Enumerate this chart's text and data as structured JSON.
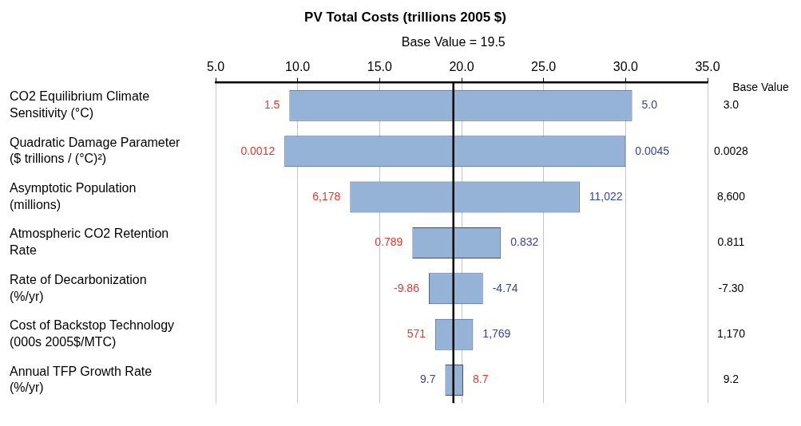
{
  "chart_data": {
    "type": "bar",
    "orientation": "horizontal",
    "title": "PV Total Costs (trillions 2005 $)",
    "categories": [
      "CO2 Equilibrium Climate\nSensitivity (°C)",
      "Quadratic Damage Parameter\n($ trillions / (°C)²)",
      "Asymptotic Population\n(millions)",
      "Atmospheric CO2 Retention\nRate",
      "Rate of Decarbonization\n(%/yr)",
      "Cost of Backstop Technology\n(000s 2005$/MTC)",
      "Annual TFP Growth Rate\n(%/yr)"
    ],
    "y2label": "Base Value",
    "y2_categories": [
      "3.0",
      "0.0028",
      "8,600",
      "0.811",
      "-7.30",
      "1,170",
      "9.2"
    ],
    "base": [
      9.5,
      9.2,
      13.2,
      17.0,
      18.0,
      18.4,
      19.0
    ],
    "values": [
      20.9,
      20.8,
      14.0,
      5.4,
      3.3,
      2.3,
      1.1
    ],
    "color": "#95b3d7",
    "xlim": [
      5,
      35
    ],
    "xticks": [
      {
        "value": 5,
        "label": "5.0"
      },
      {
        "value": 10,
        "label": "10.0"
      },
      {
        "value": 15,
        "label": "15.0"
      },
      {
        "value": 20,
        "label": "20.0"
      },
      {
        "value": 25,
        "label": "25.0"
      },
      {
        "value": 30,
        "label": "30.0"
      },
      {
        "value": 35,
        "label": "35.0"
      }
    ],
    "grid": "x",
    "ref_lines": [
      {
        "axis": "x",
        "value": 19.5,
        "label": "Base Value = 19.5",
        "color": "#000000"
      }
    ],
    "annotations": [
      {
        "text": "1.5",
        "x": 9.5,
        "y": "CO2 Equilibrium Climate\nSensitivity (°C)"
      },
      {
        "text": "5.0",
        "x": 30.4,
        "y": "CO2 Equilibrium Climate\nSensitivity (°C)"
      },
      {
        "text": "0.0012",
        "x": 9.2,
        "y": "Quadratic Damage Parameter\n($ trillions / (°C)²)"
      },
      {
        "text": "0.0045",
        "x": 30.0,
        "y": "Quadratic Damage Parameter\n($ trillions / (°C)²)"
      },
      {
        "text": "6,178",
        "x": 13.2,
        "y": "Asymptotic Population\n(millions)"
      },
      {
        "text": "11,022",
        "x": 27.2,
        "y": "Asymptotic Population\n(millions)"
      },
      {
        "text": "0.789",
        "x": 17.0,
        "y": "Atmospheric CO2 Retention\nRate"
      },
      {
        "text": "0.832",
        "x": 22.4,
        "y": "Atmospheric CO2 Retention\nRate"
      },
      {
        "text": "-9.86",
        "x": 18.0,
        "y": "Rate of Decarbonization\n(%/yr)"
      },
      {
        "text": "-4.74",
        "x": 21.3,
        "y": "Rate of Decarbonization\n(%/yr)"
      },
      {
        "text": "571",
        "x": 18.4,
        "y": "Cost of Backstop Technology\n(000s 2005$/MTC)"
      },
      {
        "text": "1,769",
        "x": 20.7,
        "y": "Cost of Backstop Technology\n(000s 2005$/MTC)"
      },
      {
        "text": "8.7",
        "x": 20.1,
        "y": "Annual TFP Growth Rate\n(%/yr)"
      },
      {
        "text": "9.7",
        "x": 19.0,
        "y": "Annual TFP Growth Rate\n(%/yr)"
      }
    ]
  }
}
